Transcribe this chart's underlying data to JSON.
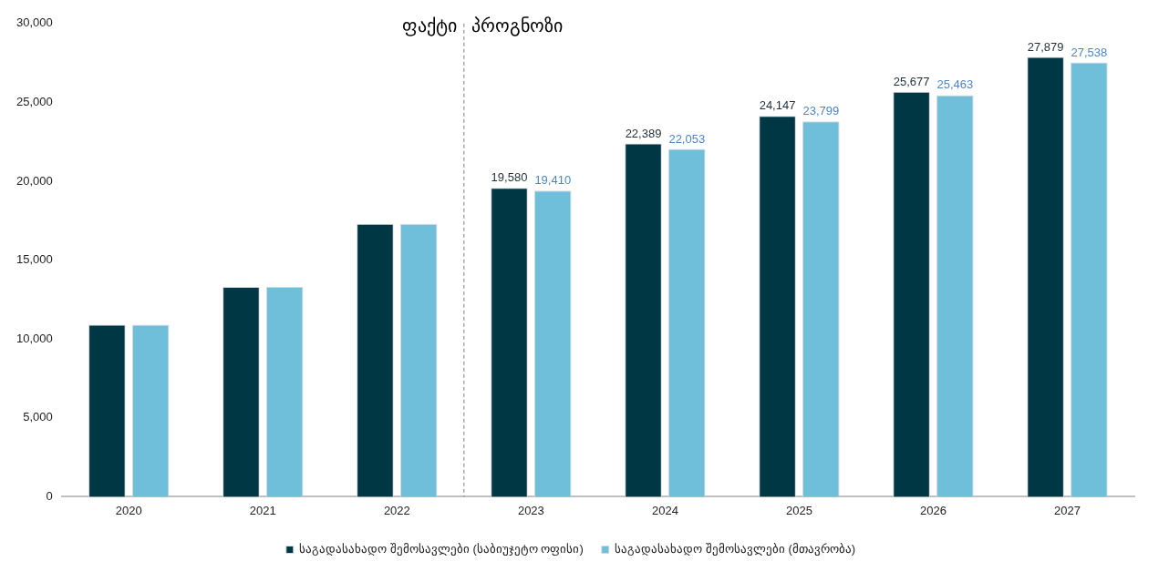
{
  "chart_data": {
    "type": "bar",
    "categories": [
      "2020",
      "2021",
      "2022",
      "2023",
      "2024",
      "2025",
      "2026",
      "2027"
    ],
    "series": [
      {
        "name": "საგადასახადო შემოსავლები (საბიუჯეტო ოფისი)",
        "color": "#003745",
        "values": [
          10900,
          13300,
          17300,
          19580,
          22389,
          24147,
          25677,
          27879
        ],
        "value_labels": [
          null,
          null,
          null,
          "19,580",
          "22,389",
          "24,147",
          "25,677",
          "27,879"
        ]
      },
      {
        "name": "საგადასახადო შემოსავლები (მთავრობა)",
        "color": "#6fbfdb",
        "values": [
          10900,
          13300,
          17300,
          19410,
          22053,
          23799,
          25463,
          27538
        ],
        "value_labels": [
          null,
          null,
          null,
          "19,410",
          "22,053",
          "23,799",
          "25,463",
          "27,538"
        ]
      }
    ],
    "ylim": [
      0,
      30000
    ],
    "yticks": [
      {
        "value": 0,
        "label": "0"
      },
      {
        "value": 5000,
        "label": "5,000"
      },
      {
        "value": 10000,
        "label": "10,000"
      },
      {
        "value": 15000,
        "label": "15,000"
      },
      {
        "value": 20000,
        "label": "20,000"
      },
      {
        "value": 25000,
        "label": "25,000"
      },
      {
        "value": 30000,
        "label": "30,000"
      }
    ],
    "grid": false,
    "legend": "bottom",
    "annotations": [
      "ფაქტი",
      "პროგნოზი"
    ]
  }
}
